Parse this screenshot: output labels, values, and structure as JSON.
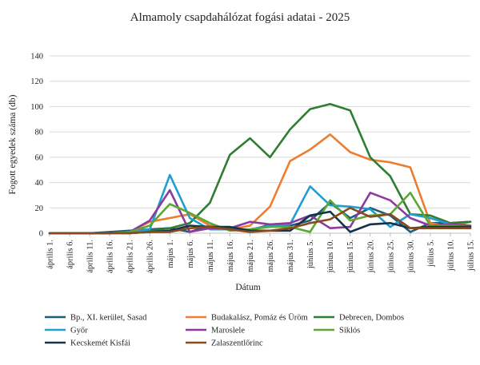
{
  "chart_data": {
    "type": "line",
    "title": "Almamoly csapdahálózat fogási adatai - 2025",
    "xlabel": "Dátum",
    "ylabel": "Fogott egyedek száma (db)",
    "ylim": [
      0,
      140
    ],
    "yticks": [
      0,
      20,
      40,
      60,
      80,
      100,
      120,
      140
    ],
    "grid": true,
    "legend_position": "bottom",
    "categories": [
      "április 1.",
      "április 6.",
      "április 11.",
      "április 16.",
      "április 21.",
      "április 26.",
      "május 1.",
      "május 6.",
      "május 11.",
      "május 16.",
      "május 21.",
      "május 26.",
      "május 31.",
      "június 5.",
      "június 10.",
      "június 15.",
      "június 20.",
      "június 25.",
      "június 30.",
      "július 5.",
      "július 10.",
      "július 15."
    ],
    "series": [
      {
        "name": "Bp., XI. kerület, Sasad",
        "color": "#1f5b7a",
        "x_index": [
          0,
          1,
          2,
          3,
          4,
          5,
          6,
          7,
          8,
          9,
          10,
          11,
          12,
          13,
          14,
          15,
          16,
          17,
          18,
          19,
          20,
          21
        ],
        "values": [
          0,
          0,
          0,
          1,
          2,
          3,
          4,
          1,
          6,
          4,
          2,
          7,
          6,
          10,
          24,
          12,
          20,
          14,
          1,
          8,
          8,
          9
        ]
      },
      {
        "name": "Budakalász, Pomáz és Üröm",
        "color": "#ed7d31",
        "x_index": [
          0,
          1,
          2,
          3,
          4,
          5,
          6,
          7,
          8,
          9,
          10,
          11,
          12,
          13,
          14,
          15,
          16,
          17,
          18,
          19,
          20,
          21
        ],
        "values": [
          0,
          0,
          0,
          0,
          1,
          9,
          12,
          15,
          6,
          3,
          6,
          21,
          57,
          66,
          78,
          64,
          58,
          56,
          52,
          8,
          5,
          9
        ]
      },
      {
        "name": "Debrecen, Dombos",
        "color": "#2e7d32",
        "x_index": [
          0,
          1,
          2,
          3,
          4,
          5,
          6,
          7,
          8,
          9,
          10,
          11,
          12,
          13,
          14,
          15,
          16,
          17,
          18,
          19,
          20,
          21
        ],
        "values": [
          0,
          0,
          0,
          0,
          1,
          2,
          4,
          8,
          24,
          62,
          75,
          60,
          82,
          98,
          102,
          97,
          60,
          45,
          15,
          14,
          8,
          9
        ]
      },
      {
        "name": "Győr",
        "color": "#1f9fd1",
        "x_index": [
          0,
          1,
          2,
          3,
          4,
          5,
          6,
          7,
          8,
          9,
          10,
          11,
          12,
          13,
          14,
          15,
          16,
          17,
          18,
          19,
          20,
          21
        ],
        "values": [
          0,
          0,
          0,
          0,
          1,
          3,
          46,
          12,
          3,
          3,
          3,
          6,
          7,
          37,
          22,
          21,
          19,
          5,
          15,
          12,
          7,
          6
        ]
      },
      {
        "name": "Maroslele",
        "color": "#8e3a9e",
        "x_index": [
          0,
          1,
          2,
          3,
          4,
          5,
          6,
          7,
          8,
          9,
          10,
          11,
          12,
          13,
          14,
          15,
          16,
          17,
          18,
          19,
          20,
          21
        ],
        "values": [
          0,
          0,
          0,
          0,
          1,
          10,
          34,
          1,
          4,
          4,
          9,
          7,
          8,
          14,
          4,
          5,
          32,
          26,
          12,
          6,
          7,
          6
        ]
      },
      {
        "name": "Siklós",
        "color": "#5ca832",
        "x_index": [
          0,
          1,
          2,
          3,
          4,
          5,
          6,
          7,
          8,
          9,
          10,
          11,
          12,
          13,
          14,
          15,
          16,
          17,
          18,
          19,
          20,
          21
        ],
        "values": [
          0,
          0,
          0,
          0,
          1,
          6,
          23,
          16,
          8,
          2,
          3,
          5,
          5,
          1,
          26,
          10,
          14,
          15,
          32,
          6,
          6,
          5
        ]
      },
      {
        "name": "Kecskemét Kisfái",
        "color": "#14324a",
        "x_index": [
          0,
          1,
          2,
          3,
          4,
          5,
          6,
          7,
          8,
          9,
          10,
          11,
          12,
          13,
          14,
          15,
          16,
          17,
          18,
          19,
          20,
          21
        ],
        "values": [
          0,
          0,
          0,
          0,
          0,
          1,
          2,
          6,
          5,
          5,
          2,
          2,
          2,
          14,
          17,
          1,
          7,
          8,
          4,
          5,
          5,
          5
        ]
      },
      {
        "name": "Zalaszentlőrinc",
        "color": "#8a4a1e",
        "x_index": [
          0,
          1,
          2,
          3,
          4,
          5,
          6,
          7,
          8,
          9,
          10,
          11,
          12,
          13,
          14,
          15,
          16,
          17,
          18,
          19,
          20,
          21
        ],
        "values": [
          0,
          0,
          0,
          0,
          0,
          1,
          1,
          4,
          5,
          3,
          1,
          2,
          4,
          8,
          11,
          20,
          13,
          15,
          4,
          4,
          4,
          4
        ]
      }
    ]
  }
}
